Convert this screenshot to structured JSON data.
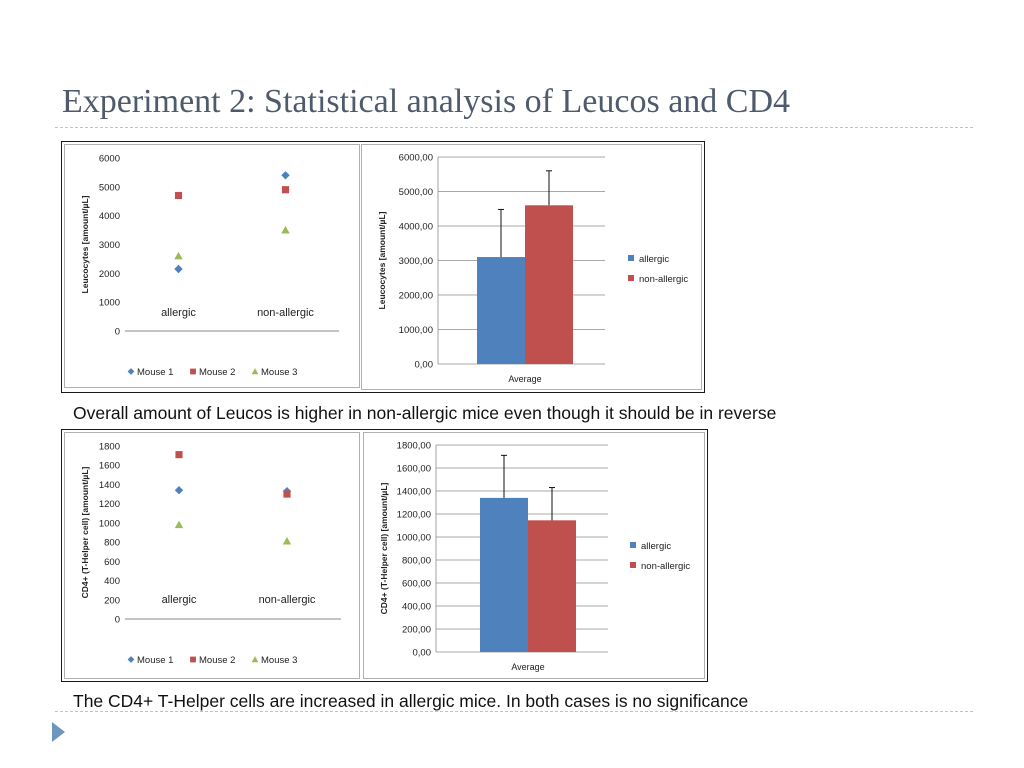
{
  "slide": {
    "title": "Experiment 2: Statistical analysis of Leucos and CD4",
    "caption_1": "Overall amount of Leucos is higher in non-allergic mice even though it should be in reverse",
    "caption_2": "The CD4+ T-Helper cells are increased in allergic mice. In both cases is no significance",
    "nav_icon": "play-triangle-icon"
  },
  "colors": {
    "mouse_1": "#4f81bd",
    "mouse_2": "#c0504d",
    "mouse_3": "#9bbb59",
    "allergic": "#4f81bd",
    "non_allergic": "#c0504d",
    "title_text": "#4f5a6b",
    "divider": "#b9c4d0"
  },
  "chart_data": [
    {
      "id": "leuco-scatter",
      "type": "scatter",
      "categories": [
        "allergic",
        "non-allergic"
      ],
      "ylabel": "Leucocytes [amount/µL]",
      "ylim": [
        0,
        6000
      ],
      "yticks": [
        "0",
        "1000",
        "2000",
        "3000",
        "4000",
        "5000",
        "6000"
      ],
      "legend_position": "bottom",
      "grid": false,
      "series": [
        {
          "name": "Mouse 1",
          "marker": "diamond",
          "values": [
            2150,
            5400
          ]
        },
        {
          "name": "Mouse 2",
          "marker": "square",
          "values": [
            4700,
            4900
          ]
        },
        {
          "name": "Mouse 3",
          "marker": "triangle",
          "values": [
            2600,
            3500
          ]
        }
      ]
    },
    {
      "id": "leuco-bar",
      "type": "bar",
      "categories": [
        "Average"
      ],
      "ylabel": "Leucocytes [amount/µL]",
      "ylim": [
        0,
        6000
      ],
      "yticks": [
        "0,00",
        "1000,00",
        "2000,00",
        "3000,00",
        "4000,00",
        "5000,00",
        "6000,00"
      ],
      "legend_position": "right",
      "grid": true,
      "series": [
        {
          "name": "allergic",
          "values": [
            3100
          ],
          "error": [
            1380
          ]
        },
        {
          "name": "non-allergic",
          "values": [
            4600
          ],
          "error": [
            1000
          ]
        }
      ]
    },
    {
      "id": "cd4-scatter",
      "type": "scatter",
      "categories": [
        "allergic",
        "non-allergic"
      ],
      "ylabel": "CD4+ (T-Helper cell) [amount/µL]",
      "ylim": [
        0,
        1800
      ],
      "yticks": [
        "0",
        "200",
        "400",
        "600",
        "800",
        "1000",
        "1200",
        "1400",
        "1600",
        "1800"
      ],
      "legend_position": "bottom",
      "grid": false,
      "series": [
        {
          "name": "Mouse 1",
          "marker": "diamond",
          "values": [
            1340,
            1330
          ]
        },
        {
          "name": "Mouse 2",
          "marker": "square",
          "values": [
            1710,
            1300
          ]
        },
        {
          "name": "Mouse 3",
          "marker": "triangle",
          "values": [
            980,
            810
          ]
        }
      ]
    },
    {
      "id": "cd4-bar",
      "type": "bar",
      "categories": [
        "Average"
      ],
      "ylabel": "CD4+ (T-Helper cell) [amount/µL]",
      "ylim": [
        0,
        1800
      ],
      "yticks": [
        "0,00",
        "200,00",
        "400,00",
        "600,00",
        "800,00",
        "1000,00",
        "1200,00",
        "1400,00",
        "1600,00",
        "1800,00"
      ],
      "legend_position": "right",
      "grid": true,
      "series": [
        {
          "name": "allergic",
          "values": [
            1340
          ],
          "error": [
            370
          ]
        },
        {
          "name": "non-allergic",
          "values": [
            1145
          ],
          "error": [
            285
          ]
        }
      ]
    }
  ]
}
